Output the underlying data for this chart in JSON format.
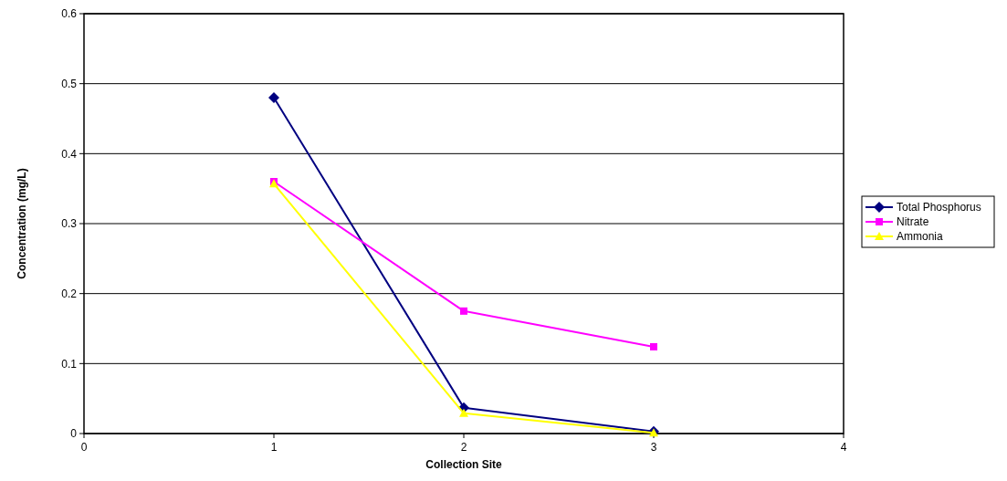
{
  "chart_data": {
    "type": "line",
    "xlabel": "Collection Site",
    "ylabel": "Concentration (mg/L)",
    "x": [
      1,
      2,
      3
    ],
    "xlim": [
      0,
      4
    ],
    "xticks": [
      0,
      1,
      2,
      3,
      4
    ],
    "ylim": [
      0,
      0.6
    ],
    "yticks": [
      0,
      0.1,
      0.2,
      0.3,
      0.4,
      0.5,
      0.6
    ],
    "grid": "y",
    "legend": "right",
    "series": [
      {
        "name": "Total Phosphorus",
        "color": "#000080",
        "marker": "diamond",
        "values": [
          0.48,
          0.037,
          0.003
        ]
      },
      {
        "name": "Nitrate",
        "color": "#ff00ff",
        "marker": "square",
        "values": [
          0.36,
          0.175,
          0.124
        ]
      },
      {
        "name": "Ammonia",
        "color": "#ffff00",
        "marker": "triangle",
        "values": [
          0.357,
          0.029,
          0.001
        ]
      }
    ]
  }
}
